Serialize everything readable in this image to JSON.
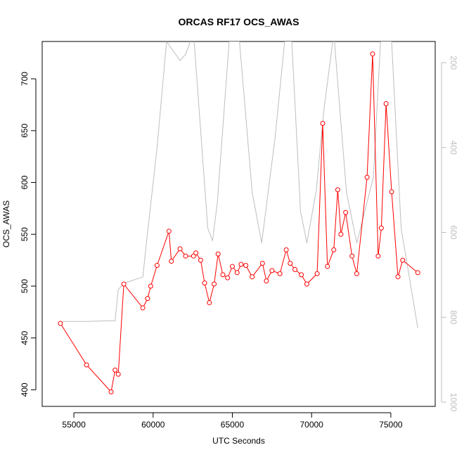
{
  "chart_data": {
    "type": "line",
    "title": "ORCAS RF17 OCS_AWAS",
    "xlabel": "UTC Seconds",
    "ylabel": "OCS_AWAS",
    "xlim": [
      53000,
      77800
    ],
    "ylim": [
      384,
      736
    ],
    "x_ticks": [
      55000,
      60000,
      65000,
      70000,
      75000
    ],
    "x_tick_labels": [
      "55000",
      "60000",
      "65000",
      "70000",
      "75000"
    ],
    "y_ticks": [
      400,
      450,
      500,
      550,
      600,
      650,
      700
    ],
    "y_tick_labels": [
      "400",
      "450",
      "500",
      "550",
      "600",
      "650",
      "700"
    ],
    "y2_lim_reversed": [
      150,
      1010
    ],
    "y2_ticks": [
      200,
      400,
      600,
      800,
      1000
    ],
    "y2_tick_labels": [
      "200",
      "400",
      "600",
      "800",
      "1000"
    ],
    "grid": false,
    "colors": {
      "primary": "#ff0000",
      "secondary": "#bebebe",
      "axis": "#000000"
    },
    "series": [
      {
        "axis": "left",
        "marker": "open-circle",
        "color": "#ff0000",
        "x": [
          54150,
          55800,
          57350,
          57600,
          57800,
          58150,
          59350,
          59650,
          59850,
          60250,
          61000,
          61150,
          61700,
          62050,
          62550,
          62700,
          63000,
          63250,
          63550,
          63850,
          64100,
          64400,
          64700,
          65000,
          65300,
          65550,
          65850,
          66250,
          66900,
          67150,
          67500,
          68000,
          68400,
          68650,
          68950,
          69350,
          69700,
          70350,
          70700,
          71000,
          71400,
          71650,
          71850,
          72150,
          72550,
          72850,
          73500,
          73850,
          74200,
          74400,
          74700,
          75050,
          75450,
          75750,
          76700
        ],
        "y": [
          464,
          424,
          398,
          419,
          415,
          502,
          479,
          488,
          500,
          520,
          553,
          524,
          536,
          529,
          529,
          532,
          525,
          503,
          484,
          502,
          531,
          511,
          508,
          519,
          513,
          521,
          520,
          509,
          522,
          505,
          515,
          512,
          535,
          522,
          516,
          511,
          502,
          512,
          657,
          519,
          535,
          593,
          550,
          571,
          529,
          512,
          605,
          724,
          529,
          556,
          676,
          591,
          509,
          525,
          513
        ]
      },
      {
        "axis": "right",
        "marker": "none",
        "color": "#bebebe",
        "x": [
          54150,
          55800,
          57350,
          57600,
          57800,
          58150,
          59350,
          59650,
          60250,
          60850,
          61700,
          62050,
          62550,
          63450,
          63750,
          64050,
          64800,
          65450,
          66250,
          66850,
          67700,
          68300,
          68750,
          69300,
          69700,
          70300,
          70750,
          71400,
          72200,
          72850,
          73900,
          74350,
          75050,
          75650,
          76700
        ],
        "y": [
          810,
          810,
          808,
          808,
          735,
          720,
          705,
          600,
          400,
          150,
          195,
          180,
          130,
          590,
          620,
          530,
          150,
          150,
          505,
          625,
          375,
          150,
          150,
          550,
          625,
          500,
          320,
          130,
          505,
          625,
          470,
          150,
          150,
          590,
          825
        ]
      }
    ]
  }
}
